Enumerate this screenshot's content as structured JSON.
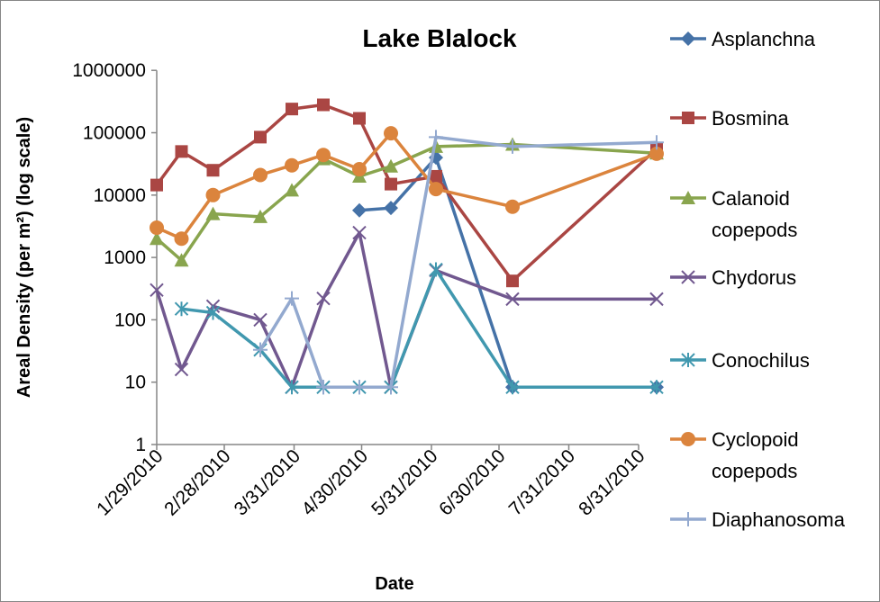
{
  "chart_data": {
    "type": "line",
    "title": "Lake Blalock",
    "xlabel": "Date",
    "ylabel": "Areal Density (per m²) (log scale)",
    "yscale": "log",
    "ylim": [
      1,
      1000000
    ],
    "y_ticks": [
      "1",
      "10",
      "100",
      "1000",
      "10000",
      "100000",
      "1000000"
    ],
    "x_ticks": [
      "1/29/2010",
      "2/28/2010",
      "3/31/2010",
      "4/30/2010",
      "5/31/2010",
      "6/30/2010",
      "7/31/2010",
      "8/31/2010"
    ],
    "x_tick_dates": [
      "2010-01-29",
      "2010-02-28",
      "2010-03-31",
      "2010-04-30",
      "2010-05-31",
      "2010-06-30",
      "2010-07-31",
      "2010-08-31"
    ],
    "x": [
      "2010-01-29",
      "2010-02-09",
      "2010-02-23",
      "2010-03-16",
      "2010-03-30",
      "2010-04-13",
      "2010-04-29",
      "2010-05-13",
      "2010-06-02",
      "2010-07-06",
      "2010-09-08"
    ],
    "legend_position": "right",
    "grid": false,
    "series": [
      {
        "name": "Asplanchna",
        "color": "#4572A7",
        "marker": "diamond",
        "values": [
          null,
          null,
          null,
          null,
          null,
          null,
          5700,
          6200,
          40000,
          8.3,
          8.3
        ]
      },
      {
        "name": "Bosmina",
        "color": "#AA4643",
        "marker": "square",
        "values": [
          14500,
          50000,
          25000,
          85000,
          240000,
          280000,
          170000,
          15000,
          20000,
          420,
          55000
        ]
      },
      {
        "name": "Calanoid copepods",
        "color": "#89A54E",
        "marker": "triangle",
        "values": [
          2000,
          900,
          5000,
          4500,
          12000,
          38000,
          20000,
          29000,
          60000,
          65000,
          47000
        ]
      },
      {
        "name": "Chydorus",
        "color": "#71588F",
        "marker": "x",
        "values": [
          300,
          16,
          165,
          100,
          8.3,
          220,
          2500,
          8.3,
          620,
          215,
          215
        ]
      },
      {
        "name": "Conochilus",
        "color": "#4198AF",
        "marker": "star",
        "values": [
          null,
          150,
          130,
          33,
          8.3,
          8.3,
          8.3,
          8.3,
          640,
          8.3,
          8.3
        ]
      },
      {
        "name": "Cyclopoid copepods",
        "color": "#DB843D",
        "marker": "circle",
        "values": [
          3000,
          2000,
          10000,
          21000,
          30000,
          44000,
          26000,
          98000,
          12500,
          6500,
          46000
        ]
      },
      {
        "name": "Diaphanosoma",
        "color": "#93A9CF",
        "marker": "plus",
        "values": [
          null,
          null,
          null,
          33,
          220,
          8.3,
          8.3,
          8.3,
          85000,
          60000,
          70000
        ]
      }
    ]
  }
}
